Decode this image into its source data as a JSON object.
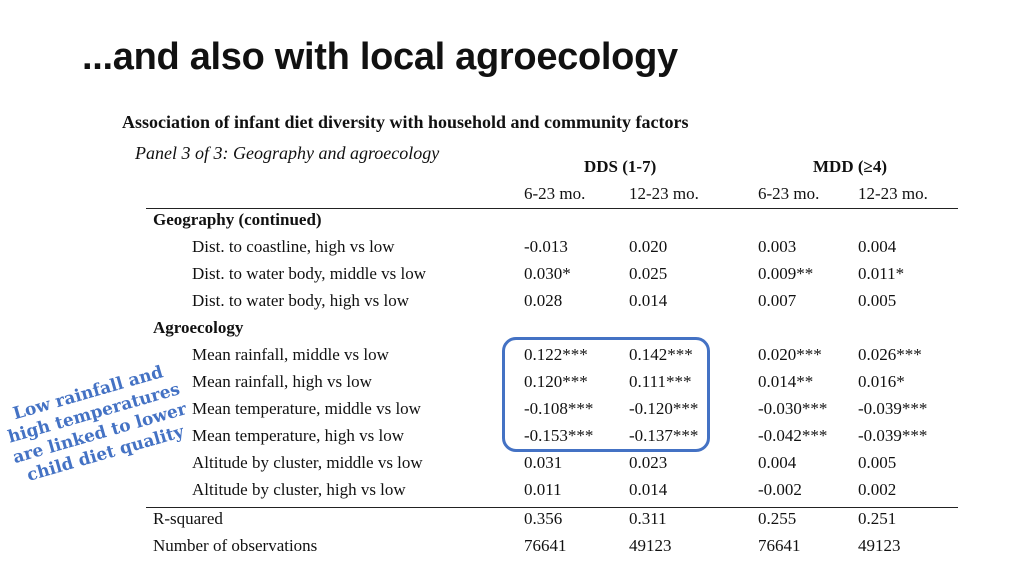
{
  "slide": {
    "title": "...and also with local agroecology"
  },
  "table": {
    "caption": "Association of infant diet diversity with household and community factors",
    "panel": "Panel 3 of 3: Geography and agroecology",
    "groups": [
      "DDS (1-7)",
      "MDD (≥4)"
    ],
    "columns": [
      "6-23 mo.",
      "12-23 mo.",
      "6-23 mo.",
      "12-23 mo."
    ],
    "sections": {
      "geography": "Geography (continued)",
      "agroecology": "Agroecology"
    },
    "rows": [
      {
        "label": "Dist. to coastline, high vs low",
        "values": [
          "-0.013",
          "0.020",
          "0.003",
          "0.004"
        ]
      },
      {
        "label": "Dist. to water body, middle vs low",
        "values": [
          "0.030*",
          "0.025",
          "0.009**",
          "0.011*"
        ]
      },
      {
        "label": "Dist. to water body, high vs low",
        "values": [
          "0.028",
          "0.014",
          "0.007",
          "0.005"
        ]
      },
      {
        "label": "Mean rainfall, middle vs low",
        "values": [
          "0.122***",
          "0.142***",
          "0.020***",
          "0.026***"
        ]
      },
      {
        "label": "Mean rainfall, high vs low",
        "values": [
          "0.120***",
          "0.111***",
          "0.014**",
          "0.016*"
        ]
      },
      {
        "label": "Mean temperature, middle vs low",
        "values": [
          "-0.108***",
          "-0.120***",
          "-0.030***",
          "-0.039***"
        ]
      },
      {
        "label": "Mean temperature, high vs low",
        "values": [
          "-0.153***",
          "-0.137***",
          "-0.042***",
          "-0.039***"
        ]
      },
      {
        "label": "Altitude by cluster, middle vs low",
        "values": [
          "0.031",
          "0.023",
          "0.004",
          "0.005"
        ]
      },
      {
        "label": "Altitude by cluster, high vs low",
        "values": [
          "0.011",
          "0.014",
          "-0.002",
          "0.002"
        ]
      }
    ],
    "footer_rows": [
      {
        "label": "R-squared",
        "values": [
          "0.356",
          "0.311",
          "0.255",
          "0.251"
        ]
      },
      {
        "label": "Number of observations",
        "values": [
          "76641",
          "49123",
          "76641",
          "49123"
        ]
      }
    ]
  },
  "annotation": {
    "lines": [
      "Low rainfall and",
      "high temperatures",
      "are linked to lower",
      "child diet quality"
    ],
    "color": "#4472c4"
  }
}
